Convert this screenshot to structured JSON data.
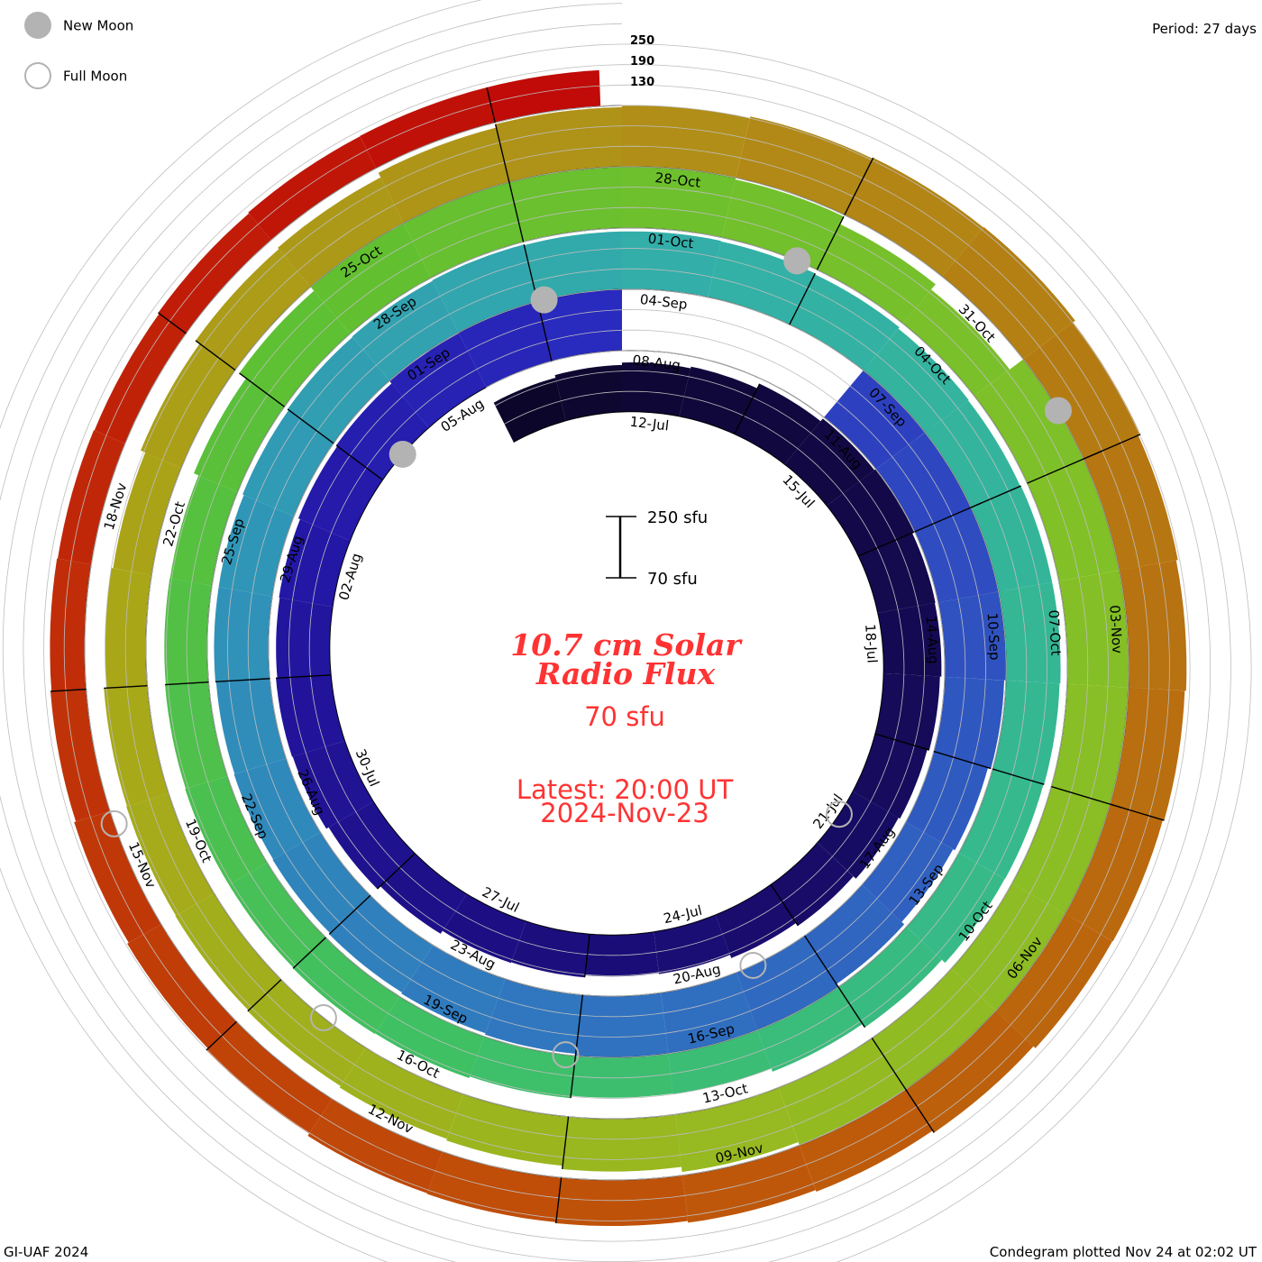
{
  "legend": {
    "new_moon_label": "New Moon",
    "full_moon_label": "Full Moon",
    "new_moon_color": "#b3b3b3",
    "full_moon_color": "#b3b3b3"
  },
  "period_label": "Period: 27 days",
  "footer_left": "GI-UAF 2024",
  "footer_right": "Condegram plotted Nov 24 at 02:02 UT",
  "center": {
    "title_line1": "10.7 cm Solar",
    "title_line2": "Radio Flux",
    "base_label": "70 sfu",
    "latest_line1": "Latest: 20:00 UT",
    "latest_line2": "2024-Nov-23",
    "scale_top": "250 sfu",
    "scale_bottom": "70 sfu",
    "text_color": "#ff3333"
  },
  "chart_data": {
    "type": "condegram-spiral",
    "title": "10.7 cm Solar Radio Flux",
    "units": "sfu",
    "period_days": 27,
    "rotation_start_date": "2024-07-12",
    "baseline_sfu": 70,
    "scale_max_sfu": 250,
    "guide_levels": [
      "130",
      "190",
      "250"
    ],
    "first_date": "2024-07-10",
    "last_date": "2024-11-23",
    "latest_hour_utc": 20,
    "daily_flux": [
      200,
      208,
      215,
      220,
      235,
      245,
      248,
      242,
      240,
      236,
      230,
      225,
      215,
      205,
      195,
      192,
      198,
      200,
      210,
      222,
      230,
      232,
      228,
      230,
      236,
      240,
      248,
      258,
      263,
      null,
      null,
      null,
      280,
      285,
      270,
      255,
      245,
      236,
      230,
      240,
      250,
      255,
      250,
      244,
      240,
      236,
      232,
      230,
      228,
      230,
      230,
      234,
      238,
      240,
      242,
      240,
      240,
      238,
      235,
      230,
      228,
      230,
      230,
      228,
      226,
      225,
      212,
      200,
      190,
      188,
      195,
      200,
      202,
      200,
      200,
      198,
      196,
      195,
      210,
      235,
      255,
      258,
      256,
      255,
      245,
      220,
      200,
      260,
      310,
      300,
      285,
      275,
      270,
      258,
      248,
      240,
      225,
      215,
      210,
      205,
      202,
      200,
      198,
      190,
      185,
      200,
      215,
      220,
      235,
      245,
      250,
      255,
      258,
      260,
      252,
      245,
      240,
      236,
      232,
      230,
      222,
      215,
      210,
      205,
      202,
      200,
      192,
      185,
      180,
      175,
      172,
      170,
      168,
      172,
      175,
      176,
      176
    ],
    "date_labels": [
      "12-Jul",
      "15-Jul",
      "18-Jul",
      "21-Jul",
      "24-Jul",
      "27-Jul",
      "30-Jul",
      "02-Aug",
      "05-Aug",
      "08-Aug",
      "11-Aug",
      "14-Aug",
      "17-Aug",
      "20-Aug",
      "23-Aug",
      "26-Aug",
      "29-Aug",
      "01-Sep",
      "04-Sep",
      "07-Sep",
      "10-Sep",
      "13-Sep",
      "16-Sep",
      "19-Sep",
      "22-Sep",
      "25-Sep",
      "28-Sep",
      "01-Oct",
      "04-Oct",
      "07-Oct",
      "10-Oct",
      "13-Oct",
      "16-Oct",
      "19-Oct",
      "22-Oct",
      "25-Oct",
      "28-Oct",
      "31-Oct",
      "03-Nov",
      "06-Nov",
      "09-Nov",
      "12-Nov",
      "15-Nov",
      "18-Nov"
    ],
    "new_moons": [
      "2024-08-04T11:13",
      "2024-09-03T01:55",
      "2024-10-02T18:49",
      "2024-11-01T12:47"
    ],
    "full_moons": [
      "2024-07-21T10:17",
      "2024-08-19T18:26",
      "2024-09-18T02:34",
      "2024-10-17T11:26",
      "2024-11-15T21:28"
    ],
    "color_stops": [
      {
        "day": -2,
        "color": "#0c0628"
      },
      {
        "day": 6,
        "color": "#140a50"
      },
      {
        "day": 15,
        "color": "#1c0e80"
      },
      {
        "day": 22,
        "color": "#2418a8"
      },
      {
        "day": 27,
        "color": "#2a2cc0"
      },
      {
        "day": 33,
        "color": "#2f50c0"
      },
      {
        "day": 40,
        "color": "#3070c0"
      },
      {
        "day": 48,
        "color": "#3094b8"
      },
      {
        "day": 55,
        "color": "#33b0a8"
      },
      {
        "day": 62,
        "color": "#35b890"
      },
      {
        "day": 70,
        "color": "#40c060"
      },
      {
        "day": 78,
        "color": "#60c030"
      },
      {
        "day": 86,
        "color": "#80c028"
      },
      {
        "day": 94,
        "color": "#98b820"
      },
      {
        "day": 101,
        "color": "#a8a818"
      },
      {
        "day": 108,
        "color": "#b09018"
      },
      {
        "day": 115,
        "color": "#b87010"
      },
      {
        "day": 122,
        "color": "#c05008"
      },
      {
        "day": 128,
        "color": "#c03008"
      },
      {
        "day": 135,
        "color": "#c00808"
      }
    ]
  }
}
